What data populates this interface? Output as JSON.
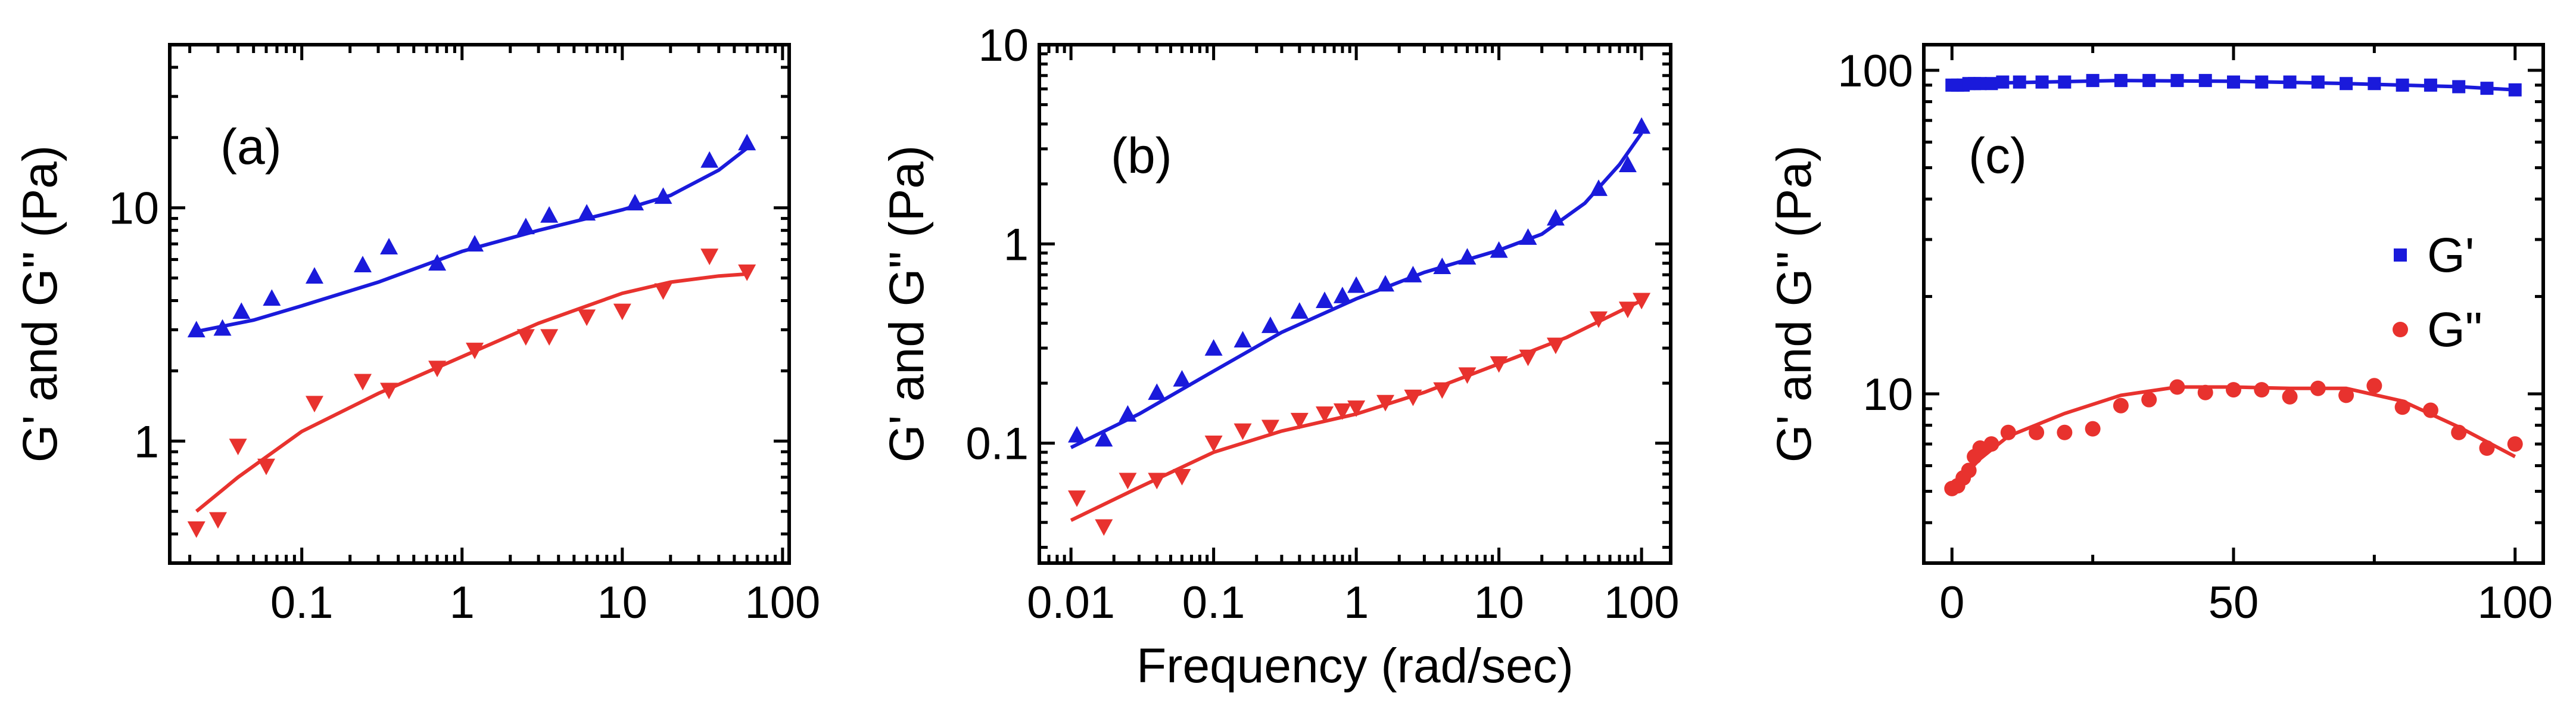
{
  "colors": {
    "gprime": "#1a1adb",
    "gdouble": "#e8322e"
  },
  "chart_data": [
    {
      "panel": "(a)",
      "type": "scatter",
      "xscale": "log",
      "yscale": "log",
      "xlim": [
        0.015,
        110
      ],
      "ylim": [
        0.3,
        50
      ],
      "xticks": [
        0.1,
        1,
        10,
        100
      ],
      "xtick_labels": [
        "0.1",
        "1",
        "10",
        "100"
      ],
      "yticks": [
        1,
        10
      ],
      "ytick_labels": [
        "1",
        "10"
      ],
      "xlabel": "",
      "ylabel": "G' and G\" (Pa)",
      "series": [
        {
          "name": "G'",
          "marker": "triangle-up",
          "color": "gprime",
          "points": [
            [
              0.022,
              3.0
            ],
            [
              0.032,
              3.05
            ],
            [
              0.042,
              3.6
            ],
            [
              0.065,
              4.1
            ],
            [
              0.12,
              5.1
            ],
            [
              0.24,
              5.7
            ],
            [
              0.35,
              6.8
            ],
            [
              0.7,
              5.8
            ],
            [
              1.2,
              7.0
            ],
            [
              2.5,
              8.3
            ],
            [
              3.5,
              9.3
            ],
            [
              6.0,
              9.5
            ],
            [
              12,
              10.5
            ],
            [
              18,
              11.2
            ],
            [
              35,
              16
            ],
            [
              60,
              19
            ]
          ],
          "fit": [
            [
              0.022,
              2.95
            ],
            [
              0.05,
              3.3
            ],
            [
              0.1,
              3.8
            ],
            [
              0.3,
              4.8
            ],
            [
              1,
              6.5
            ],
            [
              3,
              8.0
            ],
            [
              10,
              9.8
            ],
            [
              20,
              11.3
            ],
            [
              40,
              14.5
            ],
            [
              60,
              18.0
            ]
          ]
        },
        {
          "name": "G\"",
          "marker": "triangle-down",
          "color": "gdouble",
          "points": [
            [
              0.022,
              0.42
            ],
            [
              0.03,
              0.46
            ],
            [
              0.04,
              0.95
            ],
            [
              0.06,
              0.78
            ],
            [
              0.12,
              1.45
            ],
            [
              0.24,
              1.8
            ],
            [
              0.35,
              1.65
            ],
            [
              0.7,
              2.05
            ],
            [
              1.2,
              2.45
            ],
            [
              2.5,
              2.8
            ],
            [
              3.5,
              2.8
            ],
            [
              6.0,
              3.4
            ],
            [
              10,
              3.6
            ],
            [
              18,
              4.4
            ],
            [
              35,
              6.2
            ],
            [
              60,
              5.3
            ]
          ],
          "fit": [
            [
              0.022,
              0.5
            ],
            [
              0.04,
              0.7
            ],
            [
              0.1,
              1.1
            ],
            [
              0.3,
              1.6
            ],
            [
              1,
              2.3
            ],
            [
              3,
              3.2
            ],
            [
              10,
              4.3
            ],
            [
              20,
              4.8
            ],
            [
              40,
              5.1
            ],
            [
              60,
              5.2
            ]
          ]
        }
      ]
    },
    {
      "panel": "(b)",
      "type": "scatter",
      "xscale": "log",
      "yscale": "log",
      "xlim": [
        0.006,
        160
      ],
      "ylim": [
        0.025,
        10
      ],
      "xticks": [
        0.01,
        0.1,
        1,
        10,
        100
      ],
      "xtick_labels": [
        "0.01",
        "0.1",
        "1",
        "10",
        "100"
      ],
      "yticks": [
        0.1,
        1,
        10
      ],
      "ytick_labels": [
        "0.1",
        "1",
        "10"
      ],
      "xlabel": "Frequency (rad/sec)",
      "ylabel": "G' and G\" (Pa)",
      "series": [
        {
          "name": "G'",
          "marker": "triangle-up",
          "color": "gprime",
          "points": [
            [
              0.011,
              0.11
            ],
            [
              0.017,
              0.105
            ],
            [
              0.025,
              0.14
            ],
            [
              0.04,
              0.18
            ],
            [
              0.06,
              0.21
            ],
            [
              0.1,
              0.3
            ],
            [
              0.16,
              0.33
            ],
            [
              0.25,
              0.39
            ],
            [
              0.4,
              0.46
            ],
            [
              0.6,
              0.52
            ],
            [
              0.8,
              0.55
            ],
            [
              1.0,
              0.62
            ],
            [
              1.6,
              0.63
            ],
            [
              2.5,
              0.7
            ],
            [
              4,
              0.77
            ],
            [
              6,
              0.86
            ],
            [
              10,
              0.93
            ],
            [
              16,
              1.08
            ],
            [
              25,
              1.35
            ],
            [
              50,
              1.9
            ],
            [
              80,
              2.5
            ],
            [
              100,
              3.9
            ]
          ],
          "fit": [
            [
              0.01,
              0.095
            ],
            [
              0.03,
              0.14
            ],
            [
              0.1,
              0.23
            ],
            [
              0.3,
              0.36
            ],
            [
              1,
              0.53
            ],
            [
              3,
              0.72
            ],
            [
              10,
              0.93
            ],
            [
              20,
              1.12
            ],
            [
              40,
              1.6
            ],
            [
              70,
              2.5
            ],
            [
              100,
              3.6
            ]
          ]
        },
        {
          "name": "G\"",
          "marker": "triangle-down",
          "color": "gdouble",
          "points": [
            [
              0.011,
              0.053
            ],
            [
              0.017,
              0.038
            ],
            [
              0.025,
              0.065
            ],
            [
              0.04,
              0.065
            ],
            [
              0.06,
              0.068
            ],
            [
              0.1,
              0.1
            ],
            [
              0.16,
              0.115
            ],
            [
              0.25,
              0.12
            ],
            [
              0.4,
              0.13
            ],
            [
              0.6,
              0.14
            ],
            [
              0.8,
              0.145
            ],
            [
              1.0,
              0.15
            ],
            [
              1.6,
              0.16
            ],
            [
              2.5,
              0.17
            ],
            [
              4,
              0.185
            ],
            [
              6,
              0.22
            ],
            [
              10,
              0.25
            ],
            [
              16,
              0.27
            ],
            [
              25,
              0.31
            ],
            [
              50,
              0.42
            ],
            [
              80,
              0.47
            ],
            [
              100,
              0.52
            ]
          ],
          "fit": [
            [
              0.01,
              0.041
            ],
            [
              0.03,
              0.06
            ],
            [
              0.1,
              0.09
            ],
            [
              0.3,
              0.115
            ],
            [
              1,
              0.14
            ],
            [
              3,
              0.18
            ],
            [
              10,
              0.25
            ],
            [
              30,
              0.34
            ],
            [
              100,
              0.52
            ]
          ]
        }
      ]
    },
    {
      "panel": "(c)",
      "type": "scatter",
      "xscale": "linear",
      "yscale": "log",
      "xlim": [
        -5,
        105
      ],
      "ylim": [
        3,
        120
      ],
      "xticks": [
        0,
        50,
        100
      ],
      "xtick_labels": [
        "0",
        "50",
        "100"
      ],
      "yticks": [
        10,
        100
      ],
      "ytick_labels": [
        "10",
        "100"
      ],
      "xlabel": "",
      "ylabel": "G' and G\" (Pa)",
      "legend": {
        "position": "right",
        "entries": [
          "G'",
          "G\""
        ]
      },
      "series": [
        {
          "name": "G'",
          "marker": "square",
          "color": "gprime",
          "points": [
            [
              0,
              90
            ],
            [
              1,
              90
            ],
            [
              2,
              90
            ],
            [
              3,
              91
            ],
            [
              4,
              91
            ],
            [
              5,
              91
            ],
            [
              7,
              91
            ],
            [
              9,
              92
            ],
            [
              12,
              92
            ],
            [
              16,
              92
            ],
            [
              20,
              92
            ],
            [
              25,
              93
            ],
            [
              30,
              93
            ],
            [
              35,
              93
            ],
            [
              40,
              93
            ],
            [
              45,
              93
            ],
            [
              50,
              92
            ],
            [
              55,
              92
            ],
            [
              60,
              92
            ],
            [
              65,
              92
            ],
            [
              70,
              91
            ],
            [
              75,
              91
            ],
            [
              80,
              90
            ],
            [
              85,
              90
            ],
            [
              90,
              89
            ],
            [
              95,
              88
            ],
            [
              100,
              87
            ]
          ],
          "fit": [
            [
              0,
              89.5
            ],
            [
              10,
              91.5
            ],
            [
              30,
              93
            ],
            [
              50,
              92.5
            ],
            [
              70,
              91
            ],
            [
              90,
              89
            ],
            [
              100,
              87
            ]
          ]
        },
        {
          "name": "G\"",
          "marker": "circle",
          "color": "gdouble",
          "points": [
            [
              0,
              5.1
            ],
            [
              1,
              5.2
            ],
            [
              2,
              5.5
            ],
            [
              3,
              5.8
            ],
            [
              4,
              6.4
            ],
            [
              5,
              6.8
            ],
            [
              7,
              7.0
            ],
            [
              10,
              7.6
            ],
            [
              15,
              7.6
            ],
            [
              20,
              7.6
            ],
            [
              25,
              7.8
            ],
            [
              30,
              9.2
            ],
            [
              35,
              9.6
            ],
            [
              40,
              10.5
            ],
            [
              45,
              10.1
            ],
            [
              50,
              10.3
            ],
            [
              55,
              10.3
            ],
            [
              60,
              9.8
            ],
            [
              65,
              10.4
            ],
            [
              70,
              9.9
            ],
            [
              75,
              10.6
            ],
            [
              80,
              9.1
            ],
            [
              85,
              8.9
            ],
            [
              90,
              7.6
            ],
            [
              95,
              6.8
            ],
            [
              100,
              7.0
            ]
          ],
          "fit": [
            [
              0,
              5.1
            ],
            [
              5,
              6.3
            ],
            [
              10,
              7.4
            ],
            [
              20,
              8.7
            ],
            [
              30,
              9.9
            ],
            [
              40,
              10.5
            ],
            [
              50,
              10.5
            ],
            [
              60,
              10.4
            ],
            [
              70,
              10.4
            ],
            [
              80,
              9.5
            ],
            [
              90,
              7.9
            ],
            [
              100,
              6.4
            ]
          ]
        }
      ]
    }
  ]
}
